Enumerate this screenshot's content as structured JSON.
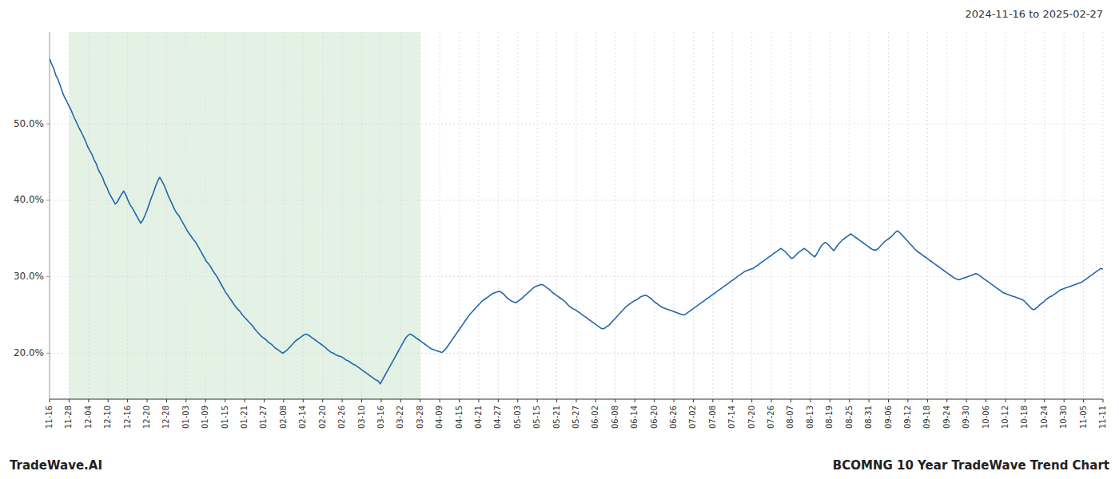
{
  "chart_data": {
    "type": "line",
    "title": "2024-11-16 to 2025-02-27",
    "annotations": [
      "TradeWave.AI",
      "BCOMNG 10 Year TradeWave Trend Chart"
    ],
    "grid": true,
    "xlim": [
      0,
      54
    ],
    "xticks": [
      {
        "value": 0,
        "label": "11-16"
      },
      {
        "value": 1,
        "label": "11-28"
      },
      {
        "value": 2,
        "label": "12-04"
      },
      {
        "value": 3,
        "label": "12-10"
      },
      {
        "value": 4,
        "label": "12-16"
      },
      {
        "value": 5,
        "label": "12-20"
      },
      {
        "value": 6,
        "label": "12-28"
      },
      {
        "value": 7,
        "label": "01-03"
      },
      {
        "value": 8,
        "label": "01-09"
      },
      {
        "value": 9,
        "label": "01-15"
      },
      {
        "value": 10,
        "label": "01-21"
      },
      {
        "value": 11,
        "label": "01-27"
      },
      {
        "value": 12,
        "label": "02-08"
      },
      {
        "value": 13,
        "label": "02-14"
      },
      {
        "value": 14,
        "label": "02-20"
      },
      {
        "value": 15,
        "label": "02-26"
      },
      {
        "value": 16,
        "label": "03-10"
      },
      {
        "value": 17,
        "label": "03-16"
      },
      {
        "value": 18,
        "label": "03-22"
      },
      {
        "value": 19,
        "label": "03-28"
      },
      {
        "value": 20,
        "label": "04-09"
      },
      {
        "value": 21,
        "label": "04-15"
      },
      {
        "value": 22,
        "label": "04-21"
      },
      {
        "value": 23,
        "label": "04-27"
      },
      {
        "value": 24,
        "label": "05-03"
      },
      {
        "value": 25,
        "label": "05-15"
      },
      {
        "value": 26,
        "label": "05-21"
      },
      {
        "value": 27,
        "label": "05-27"
      },
      {
        "value": 28,
        "label": "06-02"
      },
      {
        "value": 29,
        "label": "06-08"
      },
      {
        "value": 30,
        "label": "06-14"
      },
      {
        "value": 31,
        "label": "06-20"
      },
      {
        "value": 32,
        "label": "06-26"
      },
      {
        "value": 33,
        "label": "07-02"
      },
      {
        "value": 34,
        "label": "07-08"
      },
      {
        "value": 35,
        "label": "07-14"
      },
      {
        "value": 36,
        "label": "07-20"
      },
      {
        "value": 37,
        "label": "07-26"
      },
      {
        "value": 38,
        "label": "08-07"
      },
      {
        "value": 39,
        "label": "08-13"
      },
      {
        "value": 40,
        "label": "08-19"
      },
      {
        "value": 41,
        "label": "08-25"
      },
      {
        "value": 42,
        "label": "08-31"
      },
      {
        "value": 43,
        "label": "09-06"
      },
      {
        "value": 44,
        "label": "09-12"
      },
      {
        "value": 45,
        "label": "09-18"
      },
      {
        "value": 46,
        "label": "09-24"
      },
      {
        "value": 47,
        "label": "09-30"
      },
      {
        "value": 48,
        "label": "10-06"
      },
      {
        "value": 49,
        "label": "10-12"
      },
      {
        "value": 50,
        "label": "10-18"
      },
      {
        "value": 51,
        "label": "10-24"
      },
      {
        "value": 52,
        "label": "10-30"
      },
      {
        "value": 53,
        "label": "11-05"
      },
      {
        "value": 54,
        "label": "11-11"
      }
    ],
    "ylim": [
      14,
      62
    ],
    "yticks": [
      {
        "value": 20,
        "label": "20.0%"
      },
      {
        "value": 30,
        "label": "30.0%"
      },
      {
        "value": 40,
        "label": "40.0%"
      },
      {
        "value": 50,
        "label": "50.0%"
      }
    ],
    "shaded_region": {
      "start": "11-28",
      "end": "03-28",
      "color": "#c8e6c9"
    },
    "series": [
      {
        "color": "#2166ac",
        "values": [
          58.5,
          57.8,
          57.2,
          56.3,
          55.8,
          55.0,
          54.2,
          53.5,
          53.0,
          52.4,
          51.9,
          51.2,
          50.6,
          50.0,
          49.4,
          48.9,
          48.3,
          47.7,
          47.0,
          46.5,
          46.0,
          45.3,
          44.8,
          44.0,
          43.5,
          43.0,
          42.2,
          41.7,
          41.0,
          40.5,
          40.0,
          39.5,
          39.8,
          40.3,
          40.8,
          41.2,
          40.7,
          40.0,
          39.4,
          39.0,
          38.5,
          38.0,
          37.5,
          37.0,
          37.4,
          38.0,
          38.7,
          39.5,
          40.3,
          41.0,
          41.8,
          42.5,
          43.0,
          42.5,
          42.0,
          41.3,
          40.6,
          40.0,
          39.4,
          38.8,
          38.3,
          38.0,
          37.5,
          37.0,
          36.5,
          36.0,
          35.6,
          35.2,
          34.8,
          34.5,
          34.0,
          33.5,
          33.0,
          32.5,
          32.0,
          31.7,
          31.3,
          30.8,
          30.4,
          30.0,
          29.5,
          29.0,
          28.5,
          28.0,
          27.6,
          27.2,
          26.8,
          26.4,
          26.0,
          25.7,
          25.4,
          25.0,
          24.7,
          24.4,
          24.1,
          23.8,
          23.5,
          23.1,
          22.8,
          22.5,
          22.2,
          22.0,
          21.8,
          21.5,
          21.3,
          21.1,
          20.8,
          20.6,
          20.4,
          20.2,
          20.0,
          20.2,
          20.4,
          20.7,
          21.0,
          21.3,
          21.6,
          21.8,
          22.0,
          22.2,
          22.4,
          22.5,
          22.4,
          22.2,
          22.0,
          21.8,
          21.6,
          21.4,
          21.2,
          21.0,
          20.8,
          20.5,
          20.3,
          20.1,
          20.0,
          19.8,
          19.7,
          19.6,
          19.5,
          19.3,
          19.1,
          19.0,
          18.8,
          18.6,
          18.5,
          18.3,
          18.1,
          17.9,
          17.7,
          17.5,
          17.3,
          17.1,
          16.9,
          16.7,
          16.5,
          16.4,
          16.0,
          16.5,
          17.0,
          17.5,
          18.0,
          18.5,
          19.0,
          19.5,
          20.0,
          20.5,
          21.0,
          21.5,
          22.0,
          22.3,
          22.5,
          22.4,
          22.2,
          22.0,
          21.8,
          21.6,
          21.4,
          21.2,
          21.0,
          20.8,
          20.6,
          20.5,
          20.4,
          20.3,
          20.2,
          20.1,
          20.3,
          20.6,
          21.0,
          21.4,
          21.8,
          22.2,
          22.6,
          23.0,
          23.4,
          23.8,
          24.2,
          24.6,
          25.0,
          25.3,
          25.6,
          25.9,
          26.2,
          26.5,
          26.8,
          27.0,
          27.2,
          27.4,
          27.6,
          27.8,
          27.9,
          28.0,
          28.1,
          28.0,
          27.8,
          27.5,
          27.2,
          27.0,
          26.8,
          26.7,
          26.6,
          26.8,
          27.0,
          27.2,
          27.5,
          27.7,
          28.0,
          28.2,
          28.5,
          28.7,
          28.8,
          28.9,
          29.0,
          28.9,
          28.7,
          28.5,
          28.3,
          28.0,
          27.8,
          27.6,
          27.4,
          27.2,
          27.0,
          26.8,
          26.5,
          26.2,
          26.0,
          25.8,
          25.7,
          25.5,
          25.3,
          25.1,
          24.9,
          24.7,
          24.5,
          24.3,
          24.1,
          23.9,
          23.7,
          23.5,
          23.3,
          23.2,
          23.3,
          23.5,
          23.7,
          24.0,
          24.3,
          24.6,
          24.9,
          25.2,
          25.5,
          25.8,
          26.1,
          26.3,
          26.5,
          26.7,
          26.9,
          27.0,
          27.2,
          27.4,
          27.5,
          27.6,
          27.5,
          27.3,
          27.1,
          26.8,
          26.6,
          26.4,
          26.2,
          26.0,
          25.9,
          25.8,
          25.7,
          25.6,
          25.5,
          25.4,
          25.3,
          25.2,
          25.1,
          25.0,
          25.1,
          25.3,
          25.5,
          25.7,
          25.9,
          26.1,
          26.3,
          26.5,
          26.7,
          26.9,
          27.1,
          27.3,
          27.5,
          27.7,
          27.9,
          28.1,
          28.3,
          28.5,
          28.7,
          28.9,
          29.1,
          29.3,
          29.5,
          29.7,
          29.9,
          30.1,
          30.3,
          30.5,
          30.7,
          30.8,
          30.9,
          31.0,
          31.1,
          31.3,
          31.5,
          31.7,
          31.9,
          32.1,
          32.3,
          32.5,
          32.7,
          32.9,
          33.1,
          33.3,
          33.5,
          33.7,
          33.5,
          33.3,
          33.0,
          32.7,
          32.4,
          32.5,
          32.8,
          33.1,
          33.3,
          33.5,
          33.7,
          33.5,
          33.3,
          33.0,
          32.8,
          32.6,
          33.0,
          33.5,
          34.0,
          34.3,
          34.5,
          34.3,
          34.0,
          33.7,
          33.4,
          33.8,
          34.2,
          34.5,
          34.8,
          35.0,
          35.2,
          35.4,
          35.6,
          35.4,
          35.2,
          35.0,
          34.8,
          34.6,
          34.4,
          34.2,
          34.0,
          33.8,
          33.6,
          33.5,
          33.5,
          33.7,
          34.0,
          34.3,
          34.6,
          34.8,
          35.0,
          35.2,
          35.5,
          35.8,
          36.0,
          35.8,
          35.5,
          35.2,
          34.9,
          34.6,
          34.3,
          34.0,
          33.7,
          33.4,
          33.2,
          33.0,
          32.8,
          32.6,
          32.4,
          32.2,
          32.0,
          31.8,
          31.6,
          31.4,
          31.2,
          31.0,
          30.8,
          30.6,
          30.4,
          30.2,
          30.0,
          29.8,
          29.7,
          29.6,
          29.7,
          29.8,
          29.9,
          30.0,
          30.1,
          30.2,
          30.3,
          30.4,
          30.3,
          30.1,
          29.9,
          29.7,
          29.5,
          29.3,
          29.1,
          28.9,
          28.7,
          28.5,
          28.3,
          28.1,
          27.9,
          27.8,
          27.7,
          27.6,
          27.5,
          27.4,
          27.3,
          27.2,
          27.1,
          27.0,
          26.8,
          26.5,
          26.2,
          25.9,
          25.7,
          25.8,
          26.0,
          26.3,
          26.5,
          26.7,
          27.0,
          27.2,
          27.4,
          27.5,
          27.7,
          27.9,
          28.1,
          28.3,
          28.4,
          28.5,
          28.6,
          28.7,
          28.8,
          28.9,
          29.0,
          29.1,
          29.2,
          29.3,
          29.5,
          29.7,
          29.9,
          30.1,
          30.3,
          30.5,
          30.7,
          30.9,
          31.1,
          31.0
        ]
      }
    ]
  }
}
